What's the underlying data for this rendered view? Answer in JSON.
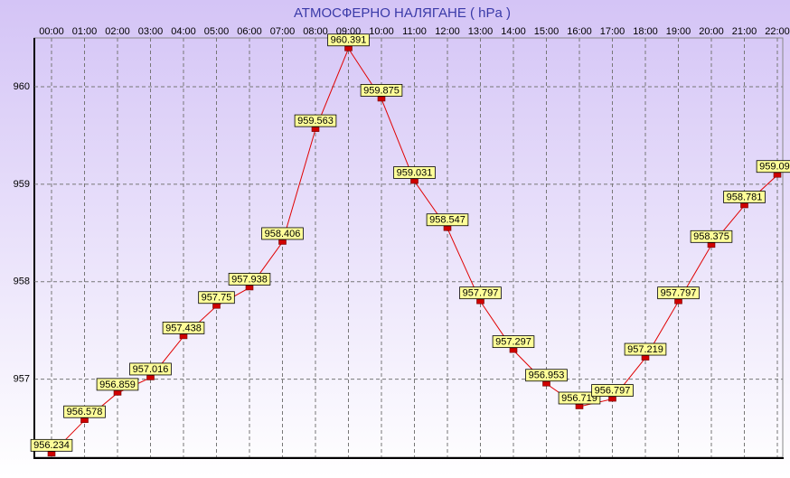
{
  "chart_data": {
    "type": "line",
    "title": "АТМОСФЕРНО НАЛЯГАНЕ  ( hPa )",
    "categories": [
      "00:00",
      "01:00",
      "02:00",
      "03:00",
      "04:00",
      "05:00",
      "06:00",
      "07:00",
      "08:00",
      "09:00",
      "10:00",
      "11:00",
      "12:00",
      "13:00",
      "14:00",
      "15:00",
      "16:00",
      "17:00",
      "18:00",
      "19:00",
      "20:00",
      "21:00",
      "22:00"
    ],
    "values": [
      956.234,
      956.578,
      956.859,
      957.016,
      957.438,
      957.75,
      957.938,
      958.406,
      959.563,
      960.391,
      959.875,
      959.031,
      958.547,
      957.797,
      957.297,
      956.953,
      956.719,
      956.797,
      957.219,
      957.797,
      958.375,
      958.781,
      959.094
    ],
    "color": "#e00000",
    "ylim": [
      956.2,
      960.5
    ],
    "yticks": [
      957,
      958,
      959,
      960
    ],
    "grid": true
  }
}
